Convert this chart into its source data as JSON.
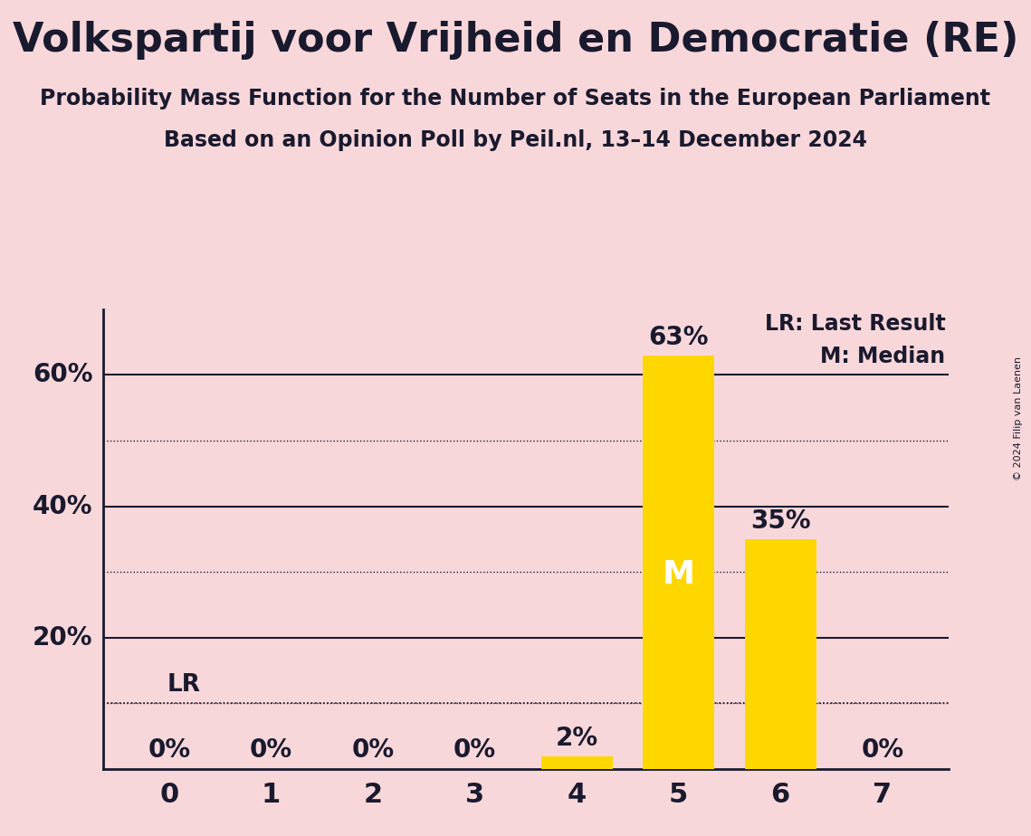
{
  "title": "Volkspartij voor Vrijheid en Democratie (RE)",
  "subtitle1": "Probability Mass Function for the Number of Seats in the European Parliament",
  "subtitle2": "Based on an Opinion Poll by Peil.nl, 13–14 December 2024",
  "copyright": "© 2024 Filip van Laenen",
  "categories": [
    0,
    1,
    2,
    3,
    4,
    5,
    6,
    7
  ],
  "values": [
    0,
    0,
    0,
    0,
    2,
    63,
    35,
    0
  ],
  "bar_color": "#FFD700",
  "background_color": "#F8D7DA",
  "text_color": "#1a1a2e",
  "median_seat": 5,
  "last_result_seat": 0,
  "last_result_pct": 10,
  "legend_lr": "LR: Last Result",
  "legend_m": "M: Median",
  "ymax": 70,
  "solid_lines": [
    20,
    40,
    60
  ],
  "dotted_lines": [
    10,
    30,
    50
  ]
}
